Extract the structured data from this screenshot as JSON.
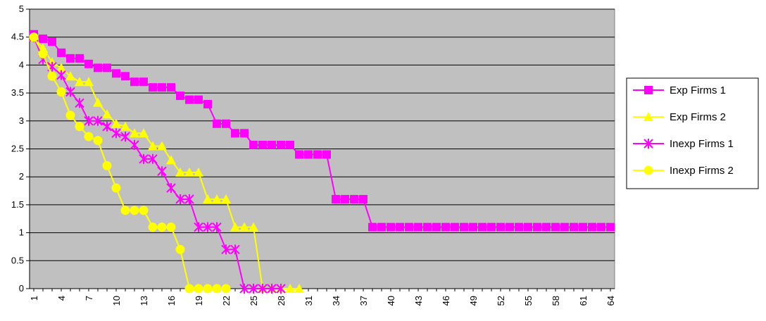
{
  "chart_data": {
    "type": "line",
    "title": "",
    "xlabel": "",
    "ylabel": "",
    "ylim": [
      0,
      5
    ],
    "yticks": [
      "0",
      "0.5",
      "1",
      "1.5",
      "2",
      "2.5",
      "3",
      "3.5",
      "4",
      "4.5",
      "5"
    ],
    "x_range": [
      1,
      64
    ],
    "xticks": [
      "1",
      "4",
      "7",
      "10",
      "13",
      "16",
      "19",
      "22",
      "25",
      "28",
      "31",
      "34",
      "37",
      "40",
      "43",
      "46",
      "49",
      "52",
      "55",
      "58",
      "61",
      "64"
    ],
    "plot_background": "#c0c0c0",
    "grid": "horizontal",
    "legend_position": "right",
    "series": [
      {
        "name": "Exp Firms 1",
        "color": "#ff00ff",
        "marker": "square",
        "x": [
          1,
          2,
          3,
          4,
          5,
          6,
          7,
          8,
          9,
          10,
          11,
          12,
          13,
          14,
          15,
          16,
          17,
          18,
          19,
          20,
          21,
          22,
          23,
          24,
          25,
          26,
          27,
          28,
          29,
          30,
          31,
          32,
          33,
          34,
          35,
          36,
          37,
          38,
          39,
          40,
          41,
          42,
          43,
          44,
          45,
          46,
          47,
          48,
          49,
          50,
          51,
          52,
          53,
          54,
          55,
          56,
          57,
          58,
          59,
          60,
          61,
          62,
          63,
          64
        ],
        "values": [
          4.55,
          4.47,
          4.42,
          4.22,
          4.12,
          4.12,
          4.02,
          3.95,
          3.95,
          3.85,
          3.8,
          3.7,
          3.7,
          3.6,
          3.6,
          3.6,
          3.45,
          3.38,
          3.38,
          3.3,
          2.95,
          2.95,
          2.78,
          2.78,
          2.57,
          2.57,
          2.57,
          2.57,
          2.57,
          2.4,
          2.4,
          2.4,
          2.4,
          1.6,
          1.6,
          1.6,
          1.6,
          1.1,
          1.1,
          1.1,
          1.1,
          1.1,
          1.1,
          1.1,
          1.1,
          1.1,
          1.1,
          1.1,
          1.1,
          1.1,
          1.1,
          1.1,
          1.1,
          1.1,
          1.1,
          1.1,
          1.1,
          1.1,
          1.1,
          1.1,
          1.1,
          1.1,
          1.1,
          1.1
        ]
      },
      {
        "name": "Exp Firms 2",
        "color": "#ffff00",
        "marker": "triangle",
        "x": [
          1,
          2,
          3,
          4,
          5,
          6,
          7,
          8,
          9,
          10,
          11,
          12,
          13,
          14,
          15,
          16,
          17,
          18,
          19,
          20,
          21,
          22,
          23,
          24,
          25,
          26,
          27,
          28,
          29,
          30
        ],
        "values": [
          4.5,
          4.3,
          4.05,
          3.95,
          3.8,
          3.7,
          3.7,
          3.33,
          3.12,
          2.95,
          2.9,
          2.78,
          2.78,
          2.55,
          2.55,
          2.3,
          2.08,
          2.08,
          2.08,
          1.6,
          1.6,
          1.6,
          1.1,
          1.1,
          1.1,
          0,
          0,
          0,
          0,
          0
        ]
      },
      {
        "name": "Inexp Firms 1",
        "color": "#ff00ff",
        "marker": "asterisk",
        "x": [
          1,
          2,
          3,
          4,
          5,
          6,
          7,
          8,
          9,
          10,
          11,
          12,
          13,
          14,
          15,
          16,
          17,
          18,
          19,
          20,
          21,
          22,
          23,
          24,
          25,
          26,
          27,
          28
        ],
        "values": [
          4.5,
          4.1,
          3.97,
          3.82,
          3.52,
          3.32,
          3.0,
          3.0,
          2.9,
          2.78,
          2.72,
          2.57,
          2.32,
          2.32,
          2.1,
          1.8,
          1.6,
          1.6,
          1.1,
          1.1,
          1.1,
          0.7,
          0.7,
          0,
          0,
          0,
          0,
          0
        ]
      },
      {
        "name": "Inexp Firms 2",
        "color": "#ffff00",
        "marker": "circle",
        "x": [
          1,
          2,
          3,
          4,
          5,
          6,
          7,
          8,
          9,
          10,
          11,
          12,
          13,
          14,
          15,
          16,
          17,
          18,
          19,
          20,
          21,
          22
        ],
        "values": [
          4.5,
          4.2,
          3.8,
          3.52,
          3.1,
          2.9,
          2.72,
          2.65,
          2.2,
          1.8,
          1.4,
          1.4,
          1.4,
          1.1,
          1.1,
          1.1,
          0.7,
          0,
          0,
          0,
          0,
          0
        ]
      }
    ]
  }
}
